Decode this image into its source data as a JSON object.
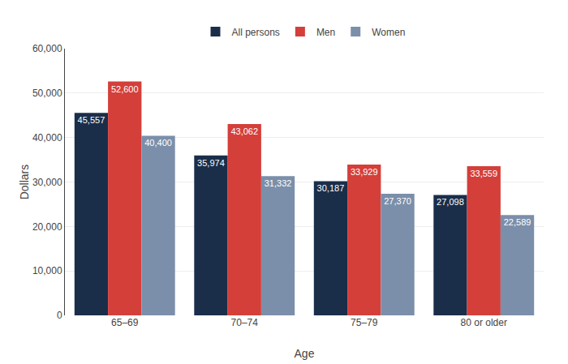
{
  "chart_data": {
    "type": "bar",
    "x_label": "Age",
    "y_label": "Dollars",
    "categories": [
      "65–69",
      "70–74",
      "75–79",
      "80 or older"
    ],
    "series": [
      {
        "name": "All persons",
        "color": "#1a2e4a",
        "values": [
          45557,
          35974,
          30187,
          27098
        ],
        "value_labels": [
          "45,557",
          "35,974",
          "30,187",
          "27,098"
        ]
      },
      {
        "name": "Men",
        "color": "#d43f3a",
        "values": [
          52600,
          43062,
          33929,
          33559
        ],
        "value_labels": [
          "52,600",
          "43,062",
          "33,929",
          "33,559"
        ]
      },
      {
        "name": "Women",
        "color": "#7b8faa",
        "values": [
          40400,
          31332,
          27370,
          22589
        ],
        "value_labels": [
          "40,400",
          "31,332",
          "27,370",
          "22,589"
        ]
      }
    ],
    "ylim": [
      0,
      60000
    ],
    "yticks": [
      0,
      {
        "value": 10000,
        "label": "10,000"
      },
      {
        "value": 20000,
        "label": "20,000"
      },
      {
        "value": 30000,
        "label": "30,000"
      },
      {
        "value": 40000,
        "label": "40,000"
      },
      {
        "value": 50000,
        "label": "50,000"
      },
      {
        "value": 60000,
        "label": "60,000"
      }
    ],
    "grid": true,
    "legend": "top",
    "data_labels": true
  }
}
